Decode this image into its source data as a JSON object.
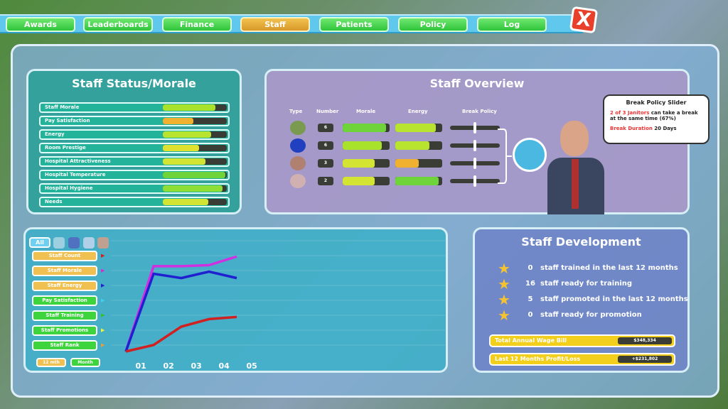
{
  "tabs": [
    {
      "label": "Awards"
    },
    {
      "label": "Leaderboards"
    },
    {
      "label": "Finance"
    },
    {
      "label": "Staff",
      "active": true
    },
    {
      "label": "Patients"
    },
    {
      "label": "Policy"
    },
    {
      "label": "Log"
    }
  ],
  "close_label": "X",
  "status": {
    "title": "Staff Status/Morale",
    "items": [
      {
        "label": "Staff Morale",
        "value": 0.82,
        "color": "#a8e22a"
      },
      {
        "label": "Pay Satisfaction",
        "value": 0.48,
        "color": "#f0b030"
      },
      {
        "label": "Energy",
        "value": 0.76,
        "color": "#b8e430"
      },
      {
        "label": "Room Prestige",
        "value": 0.57,
        "color": "#e0e030"
      },
      {
        "label": "Hospital Attractiveness",
        "value": 0.67,
        "color": "#d4e432"
      },
      {
        "label": "Hospital Temperature",
        "value": 0.98,
        "color": "#6ed43a"
      },
      {
        "label": "Hospital Hygiene",
        "value": 0.93,
        "color": "#8ede36"
      },
      {
        "label": "Needs",
        "value": 0.71,
        "color": "#d4e432"
      }
    ]
  },
  "overview": {
    "title": "Staff Overview",
    "headers": {
      "type": "Type",
      "number": "Number",
      "morale": "Morale",
      "energy": "Energy",
      "break": "Break Policy"
    },
    "rows": [
      {
        "type": "doctor",
        "number": "6",
        "morale": 0.92,
        "morale_color": "#6ed43a",
        "energy": 0.86,
        "energy_color": "#b8e430",
        "break": 0.5
      },
      {
        "type": "nurse",
        "number": "6",
        "morale": 0.84,
        "morale_color": "#a8e22a",
        "energy": 0.72,
        "energy_color": "#b8e430",
        "break": 0.5
      },
      {
        "type": "janitor",
        "number": "3",
        "morale": 0.68,
        "morale_color": "#d4e432",
        "energy": 0.5,
        "energy_color": "#f0b030",
        "break": 0.5
      },
      {
        "type": "assistant",
        "number": "2",
        "morale": 0.68,
        "morale_color": "#d4e432",
        "energy": 0.92,
        "energy_color": "#6ed43a",
        "break": 0.5
      }
    ],
    "tooltip": {
      "title": "Break Policy Slider",
      "highlight": "2 of 3 Janitors",
      "text": " can take a break at the same time (67%)",
      "duration_label": "Break Duration",
      "duration_value": " 20 Days"
    }
  },
  "graph": {
    "filter_all": "All",
    "buttons": [
      {
        "label": "Staff Count",
        "style": "yellow",
        "marker": "#d02020"
      },
      {
        "label": "Staff Morale",
        "style": "yellow",
        "marker": "#d030d0"
      },
      {
        "label": "Staff Energy",
        "style": "yellow",
        "marker": "#2020d0"
      },
      {
        "label": "Pay Satisfaction",
        "style": "green",
        "marker": "#40d0f0"
      },
      {
        "label": "Staff Training",
        "style": "green",
        "marker": "#30c030"
      },
      {
        "label": "Staff Promotions",
        "style": "green",
        "marker": "#f0f040"
      },
      {
        "label": "Staff Rank",
        "style": "green",
        "marker": "#e0a040"
      }
    ],
    "range_buttons": [
      {
        "label": "12 mth",
        "style": "yellow"
      },
      {
        "label": "Month",
        "style": "green"
      }
    ]
  },
  "chart_data": {
    "type": "line",
    "x_ticks": [
      "01",
      "02",
      "03",
      "04",
      "05"
    ],
    "x": [
      0.5,
      1.5,
      2.5,
      3.5,
      4.5
    ],
    "ylim": [
      0,
      100
    ],
    "grid": true,
    "series": [
      {
        "name": "Staff Morale",
        "color": "#d030e0",
        "values": [
          0,
          79,
          79,
          80,
          88
        ]
      },
      {
        "name": "Staff Energy",
        "color": "#2020d0",
        "values": [
          0,
          72,
          68,
          74,
          68
        ]
      },
      {
        "name": "Staff Count",
        "color": "#d02020",
        "values": [
          0,
          6,
          23,
          30,
          32
        ]
      }
    ]
  },
  "development": {
    "title": "Staff Development",
    "items": [
      {
        "value": "0",
        "label": "staff trained in the last 12 months"
      },
      {
        "value": "16",
        "label": "staff ready for training"
      },
      {
        "value": "5",
        "label": "staff promoted in the last 12 months"
      },
      {
        "value": "0",
        "label": "staff ready for promotion"
      }
    ],
    "wage_label": "Total Annual Wage Bill",
    "wage_value": "$348,334",
    "profit_label": "Last 12 Months Profit/Loss",
    "profit_value": "+$231,802"
  }
}
